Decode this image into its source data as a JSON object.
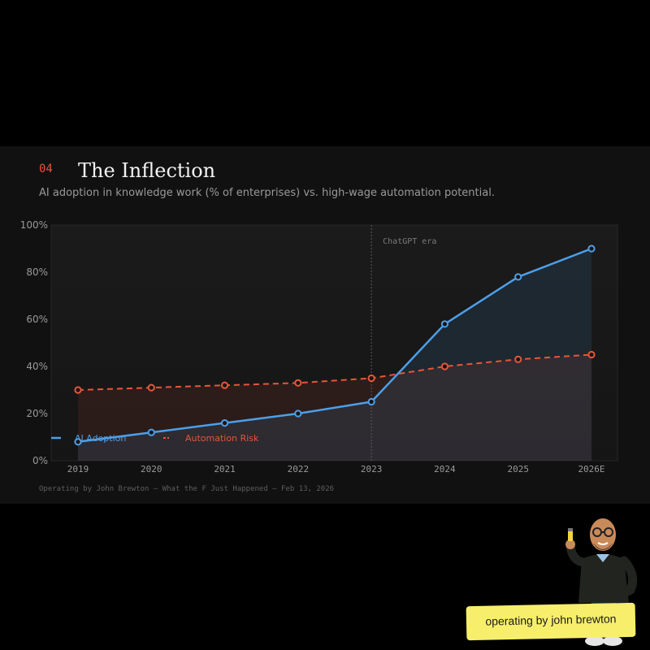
{
  "header": {
    "number": "04",
    "title": "The Inflection",
    "subtitle": "AI adoption in knowledge work (% of enterprises) vs. high-wage automation potential."
  },
  "chart_data": {
    "type": "line",
    "title": "The Inflection",
    "categories": [
      "2019",
      "2020",
      "2021",
      "2022",
      "2023",
      "2024",
      "2025",
      "2026E"
    ],
    "series": [
      {
        "name": "AI Adoption",
        "color": "#4d9fe8",
        "style": "solid",
        "values": [
          8,
          12,
          16,
          20,
          25,
          58,
          78,
          90
        ]
      },
      {
        "name": "Automation Risk",
        "color": "#e8553a",
        "style": "dashed",
        "values": [
          30,
          31,
          32,
          33,
          35,
          40,
          43,
          45
        ]
      }
    ],
    "y_ticks": [
      "0%",
      "20%",
      "40%",
      "60%",
      "80%",
      "100%"
    ],
    "ylim": [
      0,
      100
    ],
    "annotation": {
      "label": "ChatGPT era",
      "x": "2023"
    },
    "legend_position": "bottom-left",
    "grid": false
  },
  "footer": "Operating by John Brewton — What the F Just Happened — Feb 13, 2026",
  "badge": "operating by john brewton",
  "colors": {
    "background": "#000000",
    "card": "#111111",
    "accent": "#e8553a",
    "blue": "#4d9fe8"
  }
}
